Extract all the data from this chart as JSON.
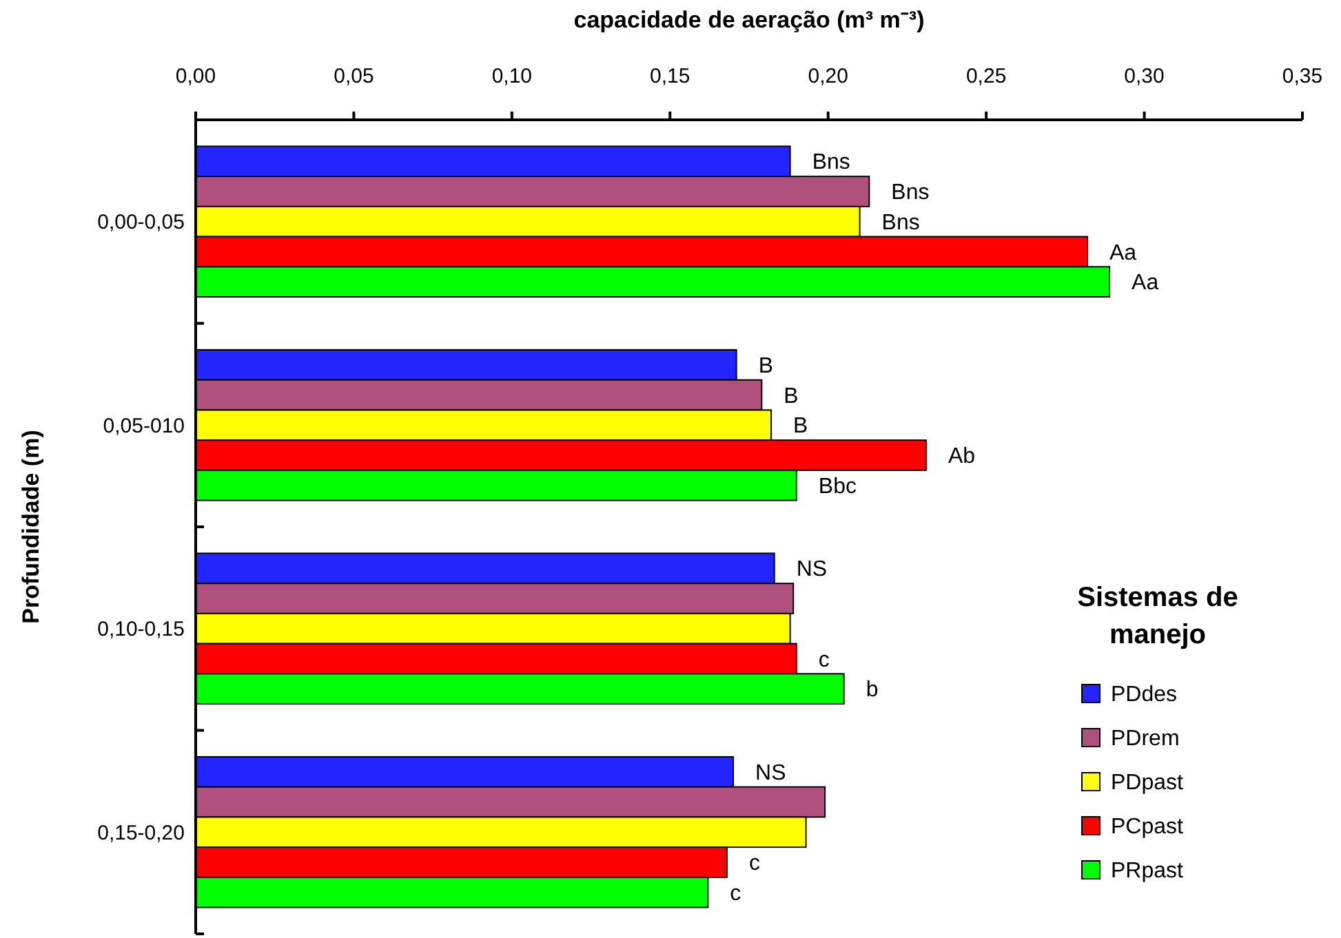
{
  "chart_data": {
    "type": "bar",
    "orientation": "horizontal",
    "xlabel": "capacidade de aeração (m³ m⁻³)",
    "ylabel": "Profundidade  (m)",
    "legend_title": "Sistemas de manejo",
    "categories": [
      "0,00-0,05",
      "0,05-010",
      "0,10-0,15",
      "0,15-0,20"
    ],
    "series": [
      {
        "name": "PDdes",
        "color": "#2424ff",
        "values": [
          0.188,
          0.171,
          0.183,
          0.17
        ],
        "value_labels": [
          "Bns",
          "B",
          "NS",
          "NS"
        ]
      },
      {
        "name": "PDrem",
        "color": "#b0507f",
        "values": [
          0.213,
          0.179,
          0.189,
          0.199
        ],
        "value_labels": [
          "Bns",
          "B",
          null,
          null
        ]
      },
      {
        "name": "PDpast",
        "color": "#ffff00",
        "values": [
          0.21,
          0.182,
          0.188,
          0.193
        ],
        "value_labels": [
          "Bns",
          "B",
          null,
          null
        ]
      },
      {
        "name": "PCpast",
        "color": "#ff0000",
        "values": [
          0.282,
          0.231,
          0.19,
          0.168
        ],
        "value_labels": [
          "Aa",
          "Ab",
          "c",
          "c"
        ]
      },
      {
        "name": "PRpast",
        "color": "#00ff00",
        "values": [
          0.289,
          0.19,
          0.205,
          0.162
        ],
        "value_labels": [
          "Aa",
          "Bbc",
          "b",
          "c"
        ]
      }
    ],
    "xlim": [
      0,
      0.35
    ],
    "xticks": [
      {
        "value": 0,
        "label": "0,00"
      },
      {
        "value": 0.05,
        "label": "0,05"
      },
      {
        "value": 0.1,
        "label": "0,10"
      },
      {
        "value": 0.15,
        "label": "0,15"
      },
      {
        "value": 0.2,
        "label": "0,20"
      },
      {
        "value": 0.25,
        "label": "0,25"
      },
      {
        "value": 0.3,
        "label": "0,30"
      },
      {
        "value": 0.35,
        "label": "0,35"
      }
    ],
    "grid": false,
    "legend": "right"
  }
}
